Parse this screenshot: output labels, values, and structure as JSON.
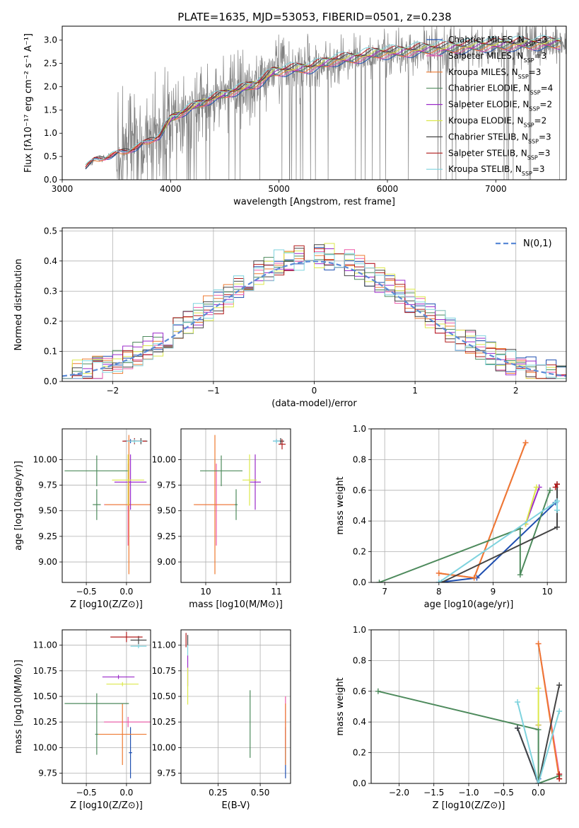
{
  "figure": {
    "title": "PLATE=1635, MJD=53053, FIBERID=0501, z=0.238"
  },
  "models": [
    {
      "name": "Chabrier MILES",
      "nssp": "3",
      "color": "#1f4fb0"
    },
    {
      "name": "Salpeter MILES",
      "nssp": "3",
      "color": "#ee5aa9"
    },
    {
      "name": "Kroupa MILES",
      "nssp": "3",
      "color": "#ee7a30"
    },
    {
      "name": "Chabrier ELODIE",
      "nssp": "4",
      "color": "#4d8a5c"
    },
    {
      "name": "Salpeter ELODIE",
      "nssp": "2",
      "color": "#9b2bc9"
    },
    {
      "name": "Kroupa ELODIE",
      "nssp": "2",
      "color": "#dbe84a"
    },
    {
      "name": "Chabrier STELIB",
      "nssp": "3",
      "color": "#444444"
    },
    {
      "name": "Salpeter STELIB",
      "nssp": "3",
      "color": "#b11c1c"
    },
    {
      "name": "Kroupa STELIB",
      "nssp": "3",
      "color": "#7fd3de"
    }
  ],
  "chart_data": [
    {
      "id": "spectrum",
      "type": "line",
      "xlabel": "wavelength [Angstrom, rest frame]",
      "ylabel": "Flux [fλ10⁻¹⁷ erg cm⁻² s⁻¹ A⁻¹]",
      "xlim": [
        3000,
        7650
      ],
      "ylim": [
        0,
        3.3
      ],
      "xticks": [
        3000,
        4000,
        5000,
        6000,
        7000
      ],
      "yticks": [
        0.0,
        0.5,
        1.0,
        1.5,
        2.0,
        2.5,
        3.0
      ],
      "grid": false,
      "legend_position": "top-right",
      "data_color": "#808080",
      "data_range": [
        3215,
        7650
      ],
      "continuum": {
        "x": [
          3215,
          3300,
          3500,
          3700,
          3900,
          4000,
          4200,
          4400,
          4600,
          4800,
          4950,
          5100,
          5300,
          5500,
          5700,
          5900,
          6100,
          6300,
          6500,
          6800,
          7000,
          7300,
          7650
        ],
        "y": [
          0.28,
          0.42,
          0.55,
          0.7,
          0.95,
          1.3,
          1.55,
          1.75,
          1.9,
          2.05,
          2.3,
          2.35,
          2.4,
          2.55,
          2.6,
          2.7,
          2.72,
          2.78,
          2.8,
          2.85,
          2.88,
          2.9,
          2.92
        ]
      }
    },
    {
      "id": "residuals",
      "type": "step",
      "xlabel": "(data-model)/error",
      "ylabel": "Normed distribution",
      "xlim": [
        -2.5,
        2.5
      ],
      "ylim": [
        0,
        0.51
      ],
      "xticks": [
        -2,
        -1,
        0,
        1,
        2
      ],
      "yticks": [
        0.0,
        0.1,
        0.2,
        0.3,
        0.4,
        0.5
      ],
      "grid": true,
      "legend_position": "top-right",
      "gaussian_label": "N(0,1)",
      "gaussian_color": "#5b8ad6",
      "bin_width": 0.1
    },
    {
      "id": "age_vs_Z",
      "type": "errorbar",
      "xlabel": "Z [log10(Z/Z⊙)]",
      "ylabel": "age  [log10(age/yr)]",
      "xlim": [
        -0.8,
        0.3
      ],
      "ylim": [
        8.8,
        10.3
      ],
      "xticks": [
        -0.5,
        0.0
      ],
      "yticks": [
        9.0,
        9.25,
        9.5,
        9.75,
        10.0
      ],
      "grid": true,
      "points": [
        {
          "model": 0,
          "x": 0.05,
          "y": 10.18,
          "ex": 0.08,
          "ey": 0.02
        },
        {
          "model": 1,
          "x": 0.02,
          "y": 9.56,
          "ex": 0.3,
          "ey": 0.4
        },
        {
          "model": 2,
          "x": 0.03,
          "y": 9.56,
          "ex": 0.3,
          "ey": 0.68
        },
        {
          "model": 3,
          "x": -0.37,
          "y": 9.89,
          "ex": 0.4,
          "ey": 0.15
        },
        {
          "model": 3,
          "x": -0.37,
          "y": 9.56,
          "ex": 0.05,
          "ey": 0.15
        },
        {
          "model": 4,
          "x": 0.05,
          "y": 9.78,
          "ex": 0.2,
          "ey": 0.27
        },
        {
          "model": 5,
          "x": 0.02,
          "y": 9.8,
          "ex": 0.2,
          "ey": 0.25
        },
        {
          "model": 6,
          "x": 0.18,
          "y": 10.18,
          "ex": 0.08,
          "ey": 0.03
        },
        {
          "model": 7,
          "x": 0.1,
          "y": 10.18,
          "ex": 0.15,
          "ey": 0.03
        },
        {
          "model": 8,
          "x": 0.1,
          "y": 10.18,
          "ex": 0.1,
          "ey": 0.02
        }
      ]
    },
    {
      "id": "age_vs_mass",
      "type": "errorbar",
      "xlabel": "mass [log10(M/M⊙)]",
      "ylabel": "",
      "xlim": [
        9.65,
        11.2
      ],
      "ylim": [
        8.8,
        10.3
      ],
      "xticks": [
        10,
        11
      ],
      "yticks": [
        9.0,
        9.25,
        9.5,
        9.75,
        10.0
      ],
      "grid": true,
      "points": [
        {
          "model": 0,
          "x": 11.0,
          "y": 10.18,
          "ex": 0.05,
          "ey": 0.02
        },
        {
          "model": 1,
          "x": 10.15,
          "y": 9.56,
          "ex": 0.3,
          "ey": 0.4
        },
        {
          "model": 2,
          "x": 10.13,
          "y": 9.56,
          "ex": 0.3,
          "ey": 0.68
        },
        {
          "model": 3,
          "x": 10.22,
          "y": 9.89,
          "ex": 0.3,
          "ey": 0.15
        },
        {
          "model": 3,
          "x": 10.43,
          "y": 9.56,
          "ex": 0.02,
          "ey": 0.15
        },
        {
          "model": 4,
          "x": 10.7,
          "y": 9.78,
          "ex": 0.08,
          "ey": 0.27
        },
        {
          "model": 5,
          "x": 10.62,
          "y": 9.8,
          "ex": 0.1,
          "ey": 0.25
        },
        {
          "model": 6,
          "x": 11.06,
          "y": 10.18,
          "ex": 0.05,
          "ey": 0.03
        },
        {
          "model": 7,
          "x": 11.08,
          "y": 10.15,
          "ex": 0.05,
          "ey": 0.05
        },
        {
          "model": 8,
          "x": 11.0,
          "y": 10.18,
          "ex": 0.05,
          "ey": 0.02
        }
      ]
    },
    {
      "id": "weight_vs_age",
      "type": "line",
      "xlabel": "age  [log10(age/yr)]",
      "ylabel": "mass weight",
      "xlim": [
        6.75,
        10.35
      ],
      "ylim": [
        0,
        1.0
      ],
      "xticks": [
        7,
        8,
        9,
        10
      ],
      "yticks": [
        0.0,
        0.2,
        0.4,
        0.6,
        0.8,
        1.0
      ],
      "grid": true,
      "series": [
        {
          "model": 0,
          "x": [
            8.0,
            8.7,
            10.15
          ],
          "y": [
            0.0,
            0.03,
            0.52
          ]
        },
        {
          "model": 1,
          "x": [
            8.0,
            8.65,
            9.6
          ],
          "y": [
            0.06,
            0.03,
            0.91
          ]
        },
        {
          "model": 2,
          "x": [
            8.0,
            8.65,
            9.6
          ],
          "y": [
            0.06,
            0.03,
            0.91
          ]
        },
        {
          "model": 3,
          "x": [
            6.9,
            9.5,
            9.5,
            10.05
          ],
          "y": [
            0.0,
            0.35,
            0.05,
            0.6
          ]
        },
        {
          "model": 4,
          "x": [
            9.6,
            9.85
          ],
          "y": [
            0.38,
            0.62
          ]
        },
        {
          "model": 5,
          "x": [
            9.6,
            9.8
          ],
          "y": [
            0.38,
            0.62
          ]
        },
        {
          "model": 6,
          "x": [
            8.05,
            10.18,
            10.18
          ],
          "y": [
            0.0,
            0.36,
            0.64
          ]
        },
        {
          "model": 7,
          "x": [
            10.15,
            10.18
          ],
          "y": [
            0.62,
            0.64
          ]
        },
        {
          "model": 8,
          "x": [
            8.0,
            10.18,
            10.18
          ],
          "y": [
            0.0,
            0.53,
            0.47
          ]
        }
      ]
    },
    {
      "id": "mass_vs_Z",
      "type": "errorbar",
      "xlabel": "Z [log10(Z/Z⊙)]",
      "ylabel": "mass [log10(M/M⊙)]",
      "xlim": [
        -0.8,
        0.3
      ],
      "ylim": [
        9.65,
        11.15
      ],
      "xticks": [
        -0.5,
        0.0
      ],
      "yticks": [
        9.75,
        10.0,
        10.25,
        10.5,
        10.75,
        11.0
      ],
      "grid": true,
      "points": [
        {
          "model": 0,
          "x": 0.05,
          "y": 9.95,
          "ex": 0.02,
          "ey": 0.25
        },
        {
          "model": 1,
          "x": 0.02,
          "y": 10.25,
          "ex": 0.3,
          "ey": 0.05
        },
        {
          "model": 2,
          "x": -0.05,
          "y": 10.13,
          "ex": 0.3,
          "ey": 0.3
        },
        {
          "model": 3,
          "x": -0.37,
          "y": 10.43,
          "ex": 0.4,
          "ey": 0.1
        },
        {
          "model": 3,
          "x": -0.37,
          "y": 10.13,
          "ex": 0.02,
          "ey": 0.2
        },
        {
          "model": 4,
          "x": -0.1,
          "y": 10.69,
          "ex": 0.2,
          "ey": 0.02
        },
        {
          "model": 5,
          "x": -0.05,
          "y": 10.62,
          "ex": 0.2,
          "ey": 0.02
        },
        {
          "model": 6,
          "x": 0.15,
          "y": 11.05,
          "ex": 0.1,
          "ey": 0.04
        },
        {
          "model": 7,
          "x": 0.0,
          "y": 11.08,
          "ex": 0.2,
          "ey": 0.05
        },
        {
          "model": 8,
          "x": 0.15,
          "y": 10.99,
          "ex": 0.1,
          "ey": 0.02
        }
      ]
    },
    {
      "id": "mass_vs_EBV",
      "type": "errorbar",
      "xlabel": "E(B-V)",
      "ylabel": "",
      "xlim": [
        0.03,
        0.68
      ],
      "ylim": [
        9.65,
        11.15
      ],
      "xticks": [
        0.25,
        0.5
      ],
      "yticks": [
        9.75,
        10.0,
        10.25,
        10.5,
        10.75,
        11.0
      ],
      "grid": true,
      "points": [
        {
          "model": 0,
          "x": 0.65,
          "y": 9.95,
          "ex": 0.0,
          "ey": 0.25
        },
        {
          "model": 1,
          "x": 0.65,
          "y": 10.25,
          "ex": 0.0,
          "ey": 0.25
        },
        {
          "model": 2,
          "x": 0.65,
          "y": 10.13,
          "ex": 0.0,
          "ey": 0.3
        },
        {
          "model": 3,
          "x": 0.44,
          "y": 10.23,
          "ex": 0.0,
          "ey": 0.33
        },
        {
          "model": 4,
          "x": 0.07,
          "y": 10.75,
          "ex": 0.0,
          "ey": 0.15
        },
        {
          "model": 5,
          "x": 0.07,
          "y": 10.6,
          "ex": 0.0,
          "ey": 0.18
        },
        {
          "model": 6,
          "x": 0.07,
          "y": 11.05,
          "ex": 0.0,
          "ey": 0.05
        },
        {
          "model": 7,
          "x": 0.06,
          "y": 11.05,
          "ex": 0.0,
          "ey": 0.07
        },
        {
          "model": 8,
          "x": 0.07,
          "y": 10.95,
          "ex": 0.0,
          "ey": 0.05
        }
      ]
    },
    {
      "id": "weight_vs_Z",
      "type": "line",
      "xlabel": "Z [log10(Z/Z⊙)]",
      "ylabel": "mass weight",
      "xlim": [
        -2.4,
        0.4
      ],
      "ylim": [
        0,
        1.0
      ],
      "xticks": [
        -2.0,
        -1.5,
        -1.0,
        -0.5,
        0.0
      ],
      "yticks": [
        0.0,
        0.2,
        0.4,
        0.6,
        0.8,
        1.0
      ],
      "grid": true,
      "series": [
        {
          "model": 0,
          "x": [
            -0.3,
            0.0,
            0.0
          ],
          "y": [
            0.36,
            0.0,
            0.03
          ]
        },
        {
          "model": 1,
          "x": [
            0.0,
            0.3
          ],
          "y": [
            0.91,
            0.06
          ]
        },
        {
          "model": 2,
          "x": [
            0.0,
            0.3
          ],
          "y": [
            0.91,
            0.03
          ]
        },
        {
          "model": 3,
          "x": [
            -2.3,
            0.0,
            0.0,
            0.3
          ],
          "y": [
            0.6,
            0.35,
            0.0,
            0.05
          ]
        },
        {
          "model": 4,
          "x": [
            0.0,
            0.0
          ],
          "y": [
            0.38,
            0.38
          ]
        },
        {
          "model": 5,
          "x": [
            0.0,
            0.0
          ],
          "y": [
            0.38,
            0.62
          ]
        },
        {
          "model": 6,
          "x": [
            -0.3,
            0.0,
            0.3
          ],
          "y": [
            0.36,
            0.0,
            0.64
          ]
        },
        {
          "model": 7,
          "x": [
            0.3,
            0.3
          ],
          "y": [
            0.06,
            0.03
          ]
        },
        {
          "model": 8,
          "x": [
            -0.3,
            0.0,
            0.3
          ],
          "y": [
            0.53,
            0.0,
            0.47
          ]
        }
      ]
    }
  ]
}
